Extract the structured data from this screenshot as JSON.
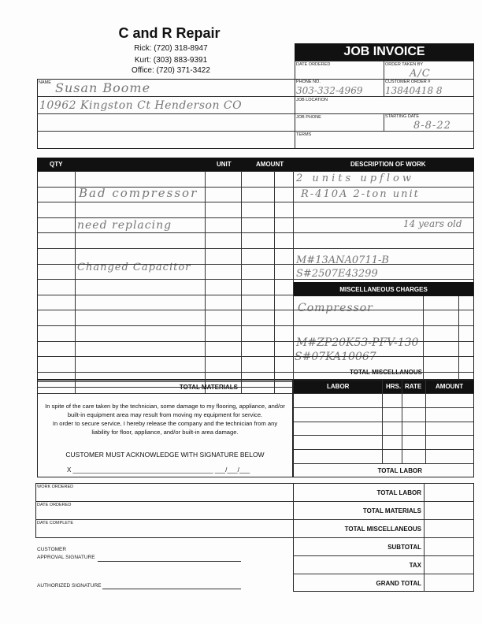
{
  "company": {
    "name": "C and R Repair",
    "phones": [
      "Rick: (720) 318-8947",
      "Kurt: (303) 883-9391",
      "Office: (720) 371-3422"
    ]
  },
  "invoice_title": "JOB INVOICE",
  "fields": {
    "date_ordered": {
      "label": "DATE ORDERED",
      "value": ""
    },
    "order_taken_by": {
      "label": "ORDER TAKEN BY",
      "value": "A/C"
    },
    "name": {
      "label": "NAME",
      "value": "Susan Boome"
    },
    "address": "10962 Kingston Ct Henderson CO",
    "phone_no": {
      "label": "PHONE NO.",
      "value": "303-332-4969"
    },
    "customer_order": {
      "label": "CUSTOMER ORDER #",
      "value": "13840418 8"
    },
    "job_location": {
      "label": "JOB LOCATION",
      "value": ""
    },
    "job_phone": {
      "label": "JOB PHONE",
      "value": ""
    },
    "starting_date": {
      "label": "STARTING DATE",
      "value": "8-8-22"
    },
    "terms": {
      "label": "TERMS",
      "value": ""
    }
  },
  "materials": {
    "headers": {
      "qty": "QTY",
      "unit": "UNIT",
      "amount": "AMOUNT",
      "description": "DESCRIPTION OF WORK"
    },
    "handwritten": [
      "Bad compressor",
      "need replacing",
      "Changed Capacitor"
    ],
    "total_label": "TOTAL MATERIALS"
  },
  "description_of_work": [
    "2 units upflow",
    "R-410A 2-ton unit",
    "14 years old",
    "M#13ANA0711-B",
    "S#2507E43299"
  ],
  "misc": {
    "header": "MISCELLANEOUS CHARGES",
    "items": [
      "Compressor",
      "M#ZP20K53-PFV-130",
      "S#07KA10067"
    ],
    "total_label": "TOTAL MISCELLANOUS"
  },
  "labor": {
    "headers": {
      "labor": "LABOR",
      "hrs": "HRS.",
      "rate": "RATE",
      "amount": "AMOUNT"
    },
    "total_label": "TOTAL LABOR"
  },
  "disclaimer": {
    "lines": [
      "In spite of the care taken by the technician, some damage to my flooring, appliance, and/or",
      "built-in equipment area may result from moving my equipment for service.",
      "In order to secure service, I hereby release the company and the technician from any",
      "liability for floor, appliance, and/or built-in area damage."
    ],
    "acknowledge": "CUSTOMER MUST ACKNOWLEDGE WITH SIGNATURE BELOW",
    "sign_line": "X ________________________________________  ___/___/___"
  },
  "bottom": {
    "left": [
      "WORK ORDERED",
      "DATE ORDERED",
      "DATE COMPLETE"
    ],
    "customer_sig": [
      "CUSTOMER",
      "APPROVAL SIGNATURE"
    ],
    "authorized_sig": "AUTHORIZED SIGNATURE",
    "totals": [
      "TOTAL LABOR",
      "TOTAL MATERIALS",
      "TOTAL MISCELLANEOUS",
      "SUBTOTAL",
      "TAX",
      "GRAND TOTAL"
    ]
  }
}
